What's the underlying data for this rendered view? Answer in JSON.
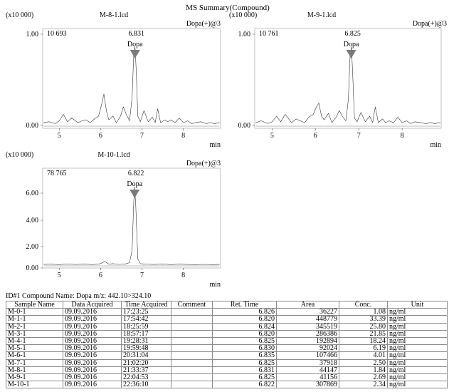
{
  "summary_title": "MS Summary(Compound)",
  "chart_data": [
    {
      "type": "line",
      "title": "M-8-1.lcd",
      "y_scale_label": "(x10 000)",
      "channel_label": "Dopa(+)@3",
      "xlabel": "min",
      "xlim": [
        4.6,
        8.9
      ],
      "ylim": [
        0,
        1.0
      ],
      "xticks": [
        5,
        6,
        7,
        8
      ],
      "yticks": [
        "1.00",
        "0.00"
      ],
      "peak": {
        "name": "Dopa",
        "ret_time": "6.831",
        "area_label": "10 693",
        "x": 6.831,
        "y": 0.85
      },
      "trace": {
        "x": [
          4.62,
          4.75,
          4.9,
          5.0,
          5.1,
          5.2,
          5.3,
          5.45,
          5.55,
          5.65,
          5.75,
          5.85,
          5.95,
          6.02,
          6.08,
          6.14,
          6.2,
          6.3,
          6.38,
          6.48,
          6.55,
          6.62,
          6.7,
          6.76,
          6.8,
          6.83,
          6.86,
          6.9,
          6.96,
          7.05,
          7.15,
          7.25,
          7.32,
          7.38,
          7.45,
          7.55,
          7.62,
          7.7,
          7.8,
          7.9,
          8.0,
          8.1,
          8.2,
          8.3,
          8.42,
          8.55,
          8.65,
          8.75,
          8.88
        ],
        "y": [
          0.03,
          0.04,
          0.02,
          0.05,
          0.12,
          0.04,
          0.08,
          0.03,
          0.05,
          0.06,
          0.03,
          0.07,
          0.1,
          0.22,
          0.34,
          0.16,
          0.06,
          0.1,
          0.03,
          0.1,
          0.2,
          0.12,
          0.05,
          0.3,
          0.75,
          0.85,
          0.6,
          0.1,
          0.04,
          0.16,
          0.04,
          0.09,
          0.03,
          0.18,
          0.03,
          0.06,
          0.04,
          0.06,
          0.03,
          0.08,
          0.03,
          0.05,
          0.02,
          0.03,
          0.04,
          0.02,
          0.03,
          0.02,
          0.03
        ]
      }
    },
    {
      "type": "line",
      "title": "M-9-1.lcd",
      "y_scale_label": "(x10 000)",
      "channel_label": "Dopa(+)@3",
      "xlabel": "min",
      "xlim": [
        4.6,
        8.9
      ],
      "ylim": [
        0,
        1.0
      ],
      "xticks": [
        5,
        6,
        7,
        8
      ],
      "yticks": [
        "1.00",
        "0.00"
      ],
      "peak": {
        "name": "Dopa",
        "ret_time": "6.825",
        "area_label": "10 761",
        "x": 6.825,
        "y": 0.85
      },
      "trace": {
        "x": [
          4.62,
          4.75,
          4.9,
          5.0,
          5.1,
          5.2,
          5.3,
          5.45,
          5.55,
          5.65,
          5.75,
          5.85,
          5.95,
          6.02,
          6.08,
          6.14,
          6.2,
          6.3,
          6.38,
          6.48,
          6.55,
          6.62,
          6.7,
          6.76,
          6.8,
          6.83,
          6.86,
          6.9,
          6.96,
          7.05,
          7.15,
          7.25,
          7.32,
          7.38,
          7.45,
          7.55,
          7.62,
          7.7,
          7.8,
          7.9,
          8.0,
          8.1,
          8.2,
          8.3,
          8.42,
          8.55,
          8.65,
          8.75,
          8.88
        ],
        "y": [
          0.03,
          0.05,
          0.02,
          0.04,
          0.1,
          0.04,
          0.12,
          0.03,
          0.07,
          0.05,
          0.03,
          0.09,
          0.12,
          0.2,
          0.24,
          0.1,
          0.06,
          0.13,
          0.03,
          0.09,
          0.16,
          0.1,
          0.05,
          0.28,
          0.76,
          0.85,
          0.55,
          0.08,
          0.04,
          0.14,
          0.04,
          0.1,
          0.03,
          0.2,
          0.03,
          0.07,
          0.03,
          0.05,
          0.03,
          0.09,
          0.03,
          0.05,
          0.02,
          0.04,
          0.03,
          0.02,
          0.03,
          0.02,
          0.03
        ]
      }
    },
    {
      "type": "line",
      "title": "M-10-1.lcd",
      "y_scale_label": "(x10 000)",
      "channel_label": "Dopa(+)@3",
      "xlabel": "min",
      "xlim": [
        4.6,
        8.9
      ],
      "ylim": [
        0,
        7.5
      ],
      "xticks": [
        5,
        6,
        7,
        8
      ],
      "yticks": [
        "6.00",
        "4.00",
        "2.00",
        "0.00"
      ],
      "peak": {
        "name": "Dopa",
        "ret_time": "6.822",
        "area_label": "78 765",
        "x": 6.822,
        "y": 6.35
      },
      "trace": {
        "x": [
          4.62,
          4.8,
          5.0,
          5.2,
          5.4,
          5.6,
          5.8,
          6.0,
          6.1,
          6.2,
          6.3,
          6.45,
          6.6,
          6.7,
          6.76,
          6.8,
          6.82,
          6.85,
          6.9,
          6.96,
          7.1,
          7.3,
          7.5,
          7.7,
          7.9,
          8.1,
          8.3,
          8.5,
          8.7,
          8.88
        ],
        "y": [
          0.05,
          0.08,
          0.04,
          0.1,
          0.05,
          0.08,
          0.04,
          0.12,
          0.3,
          0.08,
          0.12,
          0.06,
          0.1,
          0.2,
          1.2,
          5.0,
          6.35,
          4.8,
          0.5,
          0.12,
          0.08,
          0.05,
          0.1,
          0.04,
          0.08,
          0.05,
          0.04,
          0.06,
          0.04,
          0.05
        ]
      }
    }
  ],
  "compound_line": "ID#1 Compound Name: Dopa m/z: 442.10>324.10",
  "table": {
    "columns": [
      "Sample Name",
      "Data Acquired",
      "Time Acquired",
      "Comment",
      "Ret. Time",
      "Area",
      "Conc.",
      "Unit"
    ],
    "rows": [
      [
        "M-0-1",
        "09.09.2016",
        "17:23:25",
        "",
        "6.826",
        "36227",
        "1.08",
        "ng/ml"
      ],
      [
        "M-1-1",
        "09.09.2016",
        "17:54:42",
        "",
        "6.820",
        "448779",
        "33.39",
        "ng/ml"
      ],
      [
        "M-2-1",
        "09.09.2016",
        "18:25:59",
        "",
        "6.824",
        "345519",
        "25.80",
        "ng/ml"
      ],
      [
        "M-3-1",
        "09.09.2016",
        "18:57:17",
        "",
        "6.820",
        "286386",
        "21.85",
        "ng/ml"
      ],
      [
        "M-4-1",
        "09.09.2016",
        "19:28:31",
        "",
        "6.825",
        "192894",
        "18.24",
        "ng/ml"
      ],
      [
        "M-5-1",
        "09.09.2016",
        "19:59:48",
        "",
        "6.830",
        "92024",
        "6.19",
        "ng/ml"
      ],
      [
        "M-6-1",
        "09.09.2016",
        "20:31:04",
        "",
        "6.835",
        "107466",
        "4.01",
        "ng/ml"
      ],
      [
        "M-7-1",
        "09.09.2016",
        "21:02:20",
        "",
        "6.825",
        "37918",
        "2.50",
        "ng/ml"
      ],
      [
        "M-8-1",
        "09.09.2016",
        "21:33:37",
        "",
        "6.831",
        "44147",
        "1.84",
        "ng/ml"
      ],
      [
        "M-9-1",
        "09.09.2016",
        "22:04:53",
        "",
        "6.825",
        "41156",
        "2.69",
        "ng/ml"
      ],
      [
        "M-10-1",
        "09.09.2016",
        "22:36:10",
        "",
        "6.822",
        "307869",
        "2.34",
        "ng/ml"
      ]
    ]
  }
}
